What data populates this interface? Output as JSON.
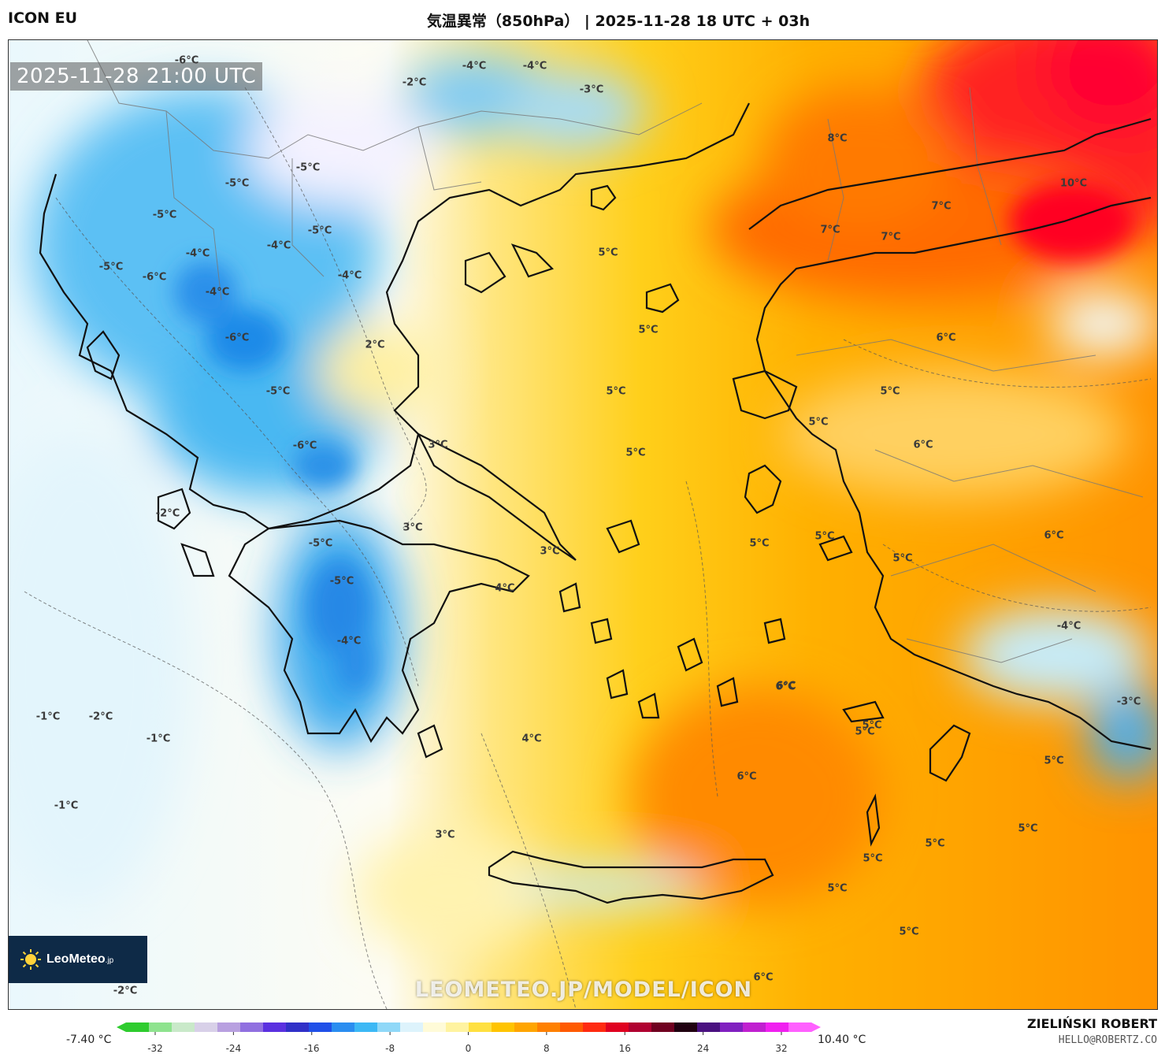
{
  "header": {
    "model": "ICON EU",
    "title": "気温異常（850hPa） | 2025-11-28 18 UTC + 03h"
  },
  "map": {
    "valid_time": "2025-11-28 21:00 UTC",
    "watermark": "LEOMETEO.JP/MODEL/ICON",
    "logo": {
      "name": "LeoMeteo",
      "suffix": ".jp",
      "icon": "sun-icon"
    },
    "value_labels": [
      {
        "text": "-6°C"
      },
      {
        "text": "-2°C"
      },
      {
        "text": "-4°C"
      },
      {
        "text": "-4°C"
      },
      {
        "text": "-3°C"
      },
      {
        "text": "-5°C"
      },
      {
        "text": "-5°C"
      },
      {
        "text": "-5°C"
      },
      {
        "text": "-5°C"
      },
      {
        "text": "-4°C"
      },
      {
        "text": "-4°C"
      },
      {
        "text": "-5°C"
      },
      {
        "text": "-6°C"
      },
      {
        "text": "-4°C"
      },
      {
        "text": "-4°C"
      },
      {
        "text": "-6°C"
      },
      {
        "text": "-5°C"
      },
      {
        "text": "-6°C"
      },
      {
        "text": "-2°C"
      },
      {
        "text": "-5°C"
      },
      {
        "text": "-5°C"
      },
      {
        "text": "-4°C"
      },
      {
        "text": "-1°C"
      },
      {
        "text": "-2°C"
      },
      {
        "text": "-1°C"
      },
      {
        "text": "-1°C"
      },
      {
        "text": "-2°C"
      },
      {
        "text": "2°C"
      },
      {
        "text": "3°C"
      },
      {
        "text": "3°C"
      },
      {
        "text": "3°C"
      },
      {
        "text": "4°C"
      },
      {
        "text": "4°C"
      },
      {
        "text": "3°C"
      },
      {
        "text": "5°C"
      },
      {
        "text": "5°C"
      },
      {
        "text": "5°C"
      },
      {
        "text": "5°C"
      },
      {
        "text": "5°C"
      },
      {
        "text": "5°C"
      },
      {
        "text": "5°C"
      },
      {
        "text": "5°C"
      },
      {
        "text": "6°C"
      },
      {
        "text": "5°C"
      },
      {
        "text": "6°C"
      },
      {
        "text": "6°C"
      },
      {
        "text": "6°C"
      },
      {
        "text": "5°C"
      },
      {
        "text": "8°C"
      },
      {
        "text": "10°C"
      },
      {
        "text": "7°C"
      },
      {
        "text": "7°C"
      },
      {
        "text": "7°C"
      },
      {
        "text": "6°C"
      },
      {
        "text": "6°C"
      },
      {
        "text": "-4°C"
      },
      {
        "text": "-3°C"
      },
      {
        "text": "5°C"
      },
      {
        "text": "5°C"
      },
      {
        "text": "5°C"
      },
      {
        "text": "5°C"
      },
      {
        "text": "5°C"
      },
      {
        "text": "5°C"
      },
      {
        "text": "5°C"
      },
      {
        "text": "6°C"
      }
    ]
  },
  "legend": {
    "min_label": "-7.40 °C",
    "max_label": "10.40 °C",
    "ticks": [
      "-32",
      "-24",
      "-16",
      "-8",
      "0",
      "8",
      "16",
      "24",
      "32"
    ],
    "colors": [
      "#2ecc2e",
      "#8ee38e",
      "#c9e9c9",
      "#d8d0e8",
      "#b8a0e0",
      "#9070e0",
      "#5a30e0",
      "#3030c8",
      "#2050e8",
      "#2a8df0",
      "#3cb8f5",
      "#8fd8f8",
      "#ddf3fc",
      "#fffbd8",
      "#fff3a0",
      "#ffe040",
      "#ffc400",
      "#ffa500",
      "#ff8000",
      "#ff5a00",
      "#ff2a10",
      "#e00020",
      "#b00030",
      "#700020",
      "#200010",
      "#4a1080",
      "#8020c0",
      "#c020d0",
      "#f020f0",
      "#ff60ff"
    ]
  },
  "credits": {
    "author": "ZIELIŃSKI ROBERT",
    "email": "HELLO@ROBERTZ.CO"
  }
}
